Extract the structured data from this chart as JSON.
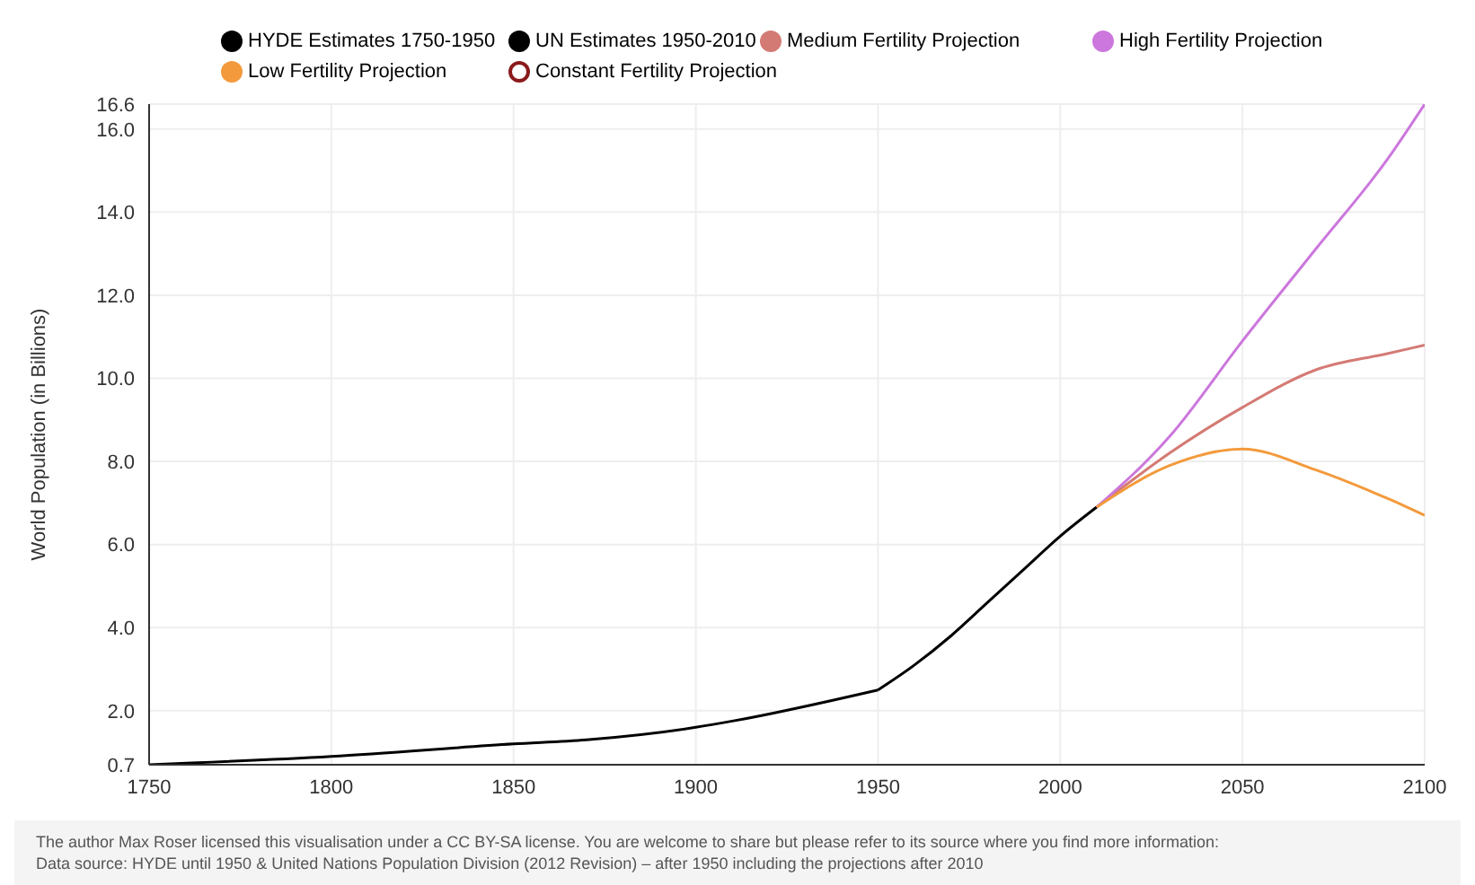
{
  "chart_data": {
    "type": "line",
    "ylabel": "World Population (in Billions)",
    "xlim": [
      1750,
      2100
    ],
    "xticks": [
      1750,
      1800,
      1850,
      1900,
      1950,
      2000,
      2050,
      2100
    ],
    "ylim": [
      0.7,
      16.6
    ],
    "yticks": [
      0.7,
      {
        "value": 2,
        "label": "2.0"
      },
      {
        "value": 4,
        "label": "4.0"
      },
      {
        "value": 6,
        "label": "6.0"
      },
      {
        "value": 8,
        "label": "8.0"
      },
      {
        "value": 10,
        "label": "10.0"
      },
      {
        "value": 12,
        "label": "12.0"
      },
      {
        "value": 14,
        "label": "14.0"
      },
      {
        "value": 16,
        "label": "16.0"
      },
      16.6
    ],
    "grid": true,
    "legend": "top",
    "marker": "none",
    "line_style": "solid",
    "series": [
      {
        "name": "HYDE Estimates 1750-1950",
        "color": "#000000",
        "x": [
          1750,
          1800,
          1850,
          1870,
          1900,
          1910,
          1950
        ],
        "values": [
          0.7,
          0.9,
          1.2,
          1.3,
          1.6,
          1.75,
          2.5
        ]
      },
      {
        "name": "UN Estimates 1950-2010",
        "color": "#000000",
        "x": [
          1950,
          1960,
          1970,
          1980,
          1990,
          2000,
          2010
        ],
        "values": [
          2.5,
          3.1,
          3.8,
          4.6,
          5.4,
          6.2,
          6.9
        ]
      },
      {
        "name": "Medium Fertility Projection",
        "color": "#d47a74",
        "x": [
          2010,
          2030,
          2050,
          2070,
          2090,
          2100
        ],
        "values": [
          6.9,
          8.2,
          9.3,
          10.2,
          10.6,
          10.8
        ]
      },
      {
        "name": "High Fertility Projection",
        "color": "#cc77dd",
        "x": [
          2010,
          2030,
          2050,
          2070,
          2090,
          2100
        ],
        "values": [
          6.9,
          8.6,
          10.9,
          13.1,
          15.3,
          16.6
        ]
      },
      {
        "name": "Low Fertility Projection",
        "color": "#f39a3c",
        "x": [
          2010,
          2030,
          2050,
          2070,
          2090,
          2100
        ],
        "values": [
          6.9,
          7.9,
          8.3,
          7.8,
          7.1,
          6.7
        ]
      },
      {
        "name": "Constant Fertility Projection",
        "color": "#8b1a1a"
      }
    ],
    "annotations": [
      "The author Max Roser licensed this visualisation under a CC BY-SA license. You are welcome to share but please refer to its source where you find more information:",
      "Data source: HYDE until 1950 & United Nations Population Division (2012 Revision) – after 1950 including the projections after 2010"
    ]
  }
}
